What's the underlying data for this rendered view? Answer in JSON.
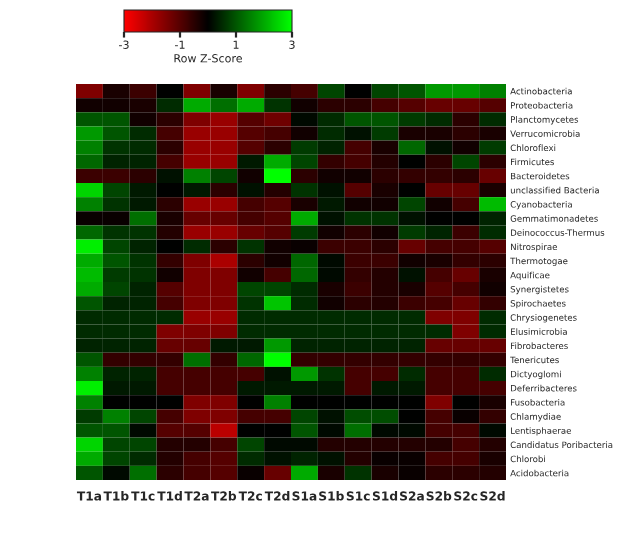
{
  "chart_data": {
    "type": "heatmap",
    "clabel": "Row Z-Score",
    "clim": [
      -3,
      3
    ],
    "cticks": [
      {
        "value": -3,
        "label": "-3"
      },
      {
        "value": -1,
        "label": "-1"
      },
      1,
      3
    ],
    "categories": [
      "T1a",
      "T1b",
      "T1c",
      "T1d",
      "T2a",
      "T2b",
      "T2c",
      "T2d",
      "S1a",
      "S1b",
      "S1c",
      "S1d",
      "S2a",
      "S2b",
      "S2c",
      "S2d"
    ],
    "y_categories": [
      "Actinobacteria",
      "Proteobacteria",
      "Planctomycetes",
      "Verrucomicrobia",
      "Chloroflexi",
      "Firmicutes",
      "Bacteroidetes",
      "unclassified Bacteria",
      "Cyanobacteria",
      "Gemmatimonadetes",
      "Deinococcus-Thermus",
      "Nitrospirae",
      "Thermotogae",
      "Aquificae",
      "Synergistetes",
      "Spirochaetes",
      "Chrysiogenetes",
      "Elusimicrobia",
      "Fibrobacteres",
      "Tenericutes",
      "Dictyoglomi",
      "Deferribacteres",
      "Fusobacteria",
      "Chlamydiae",
      "Lentisphaerae",
      "Candidatus Poribacteria",
      "Chlorobi",
      "Acidobacteria"
    ],
    "cells": [
      [
        -1.5,
        -0.3,
        -0.7,
        0,
        -1.5,
        -0.3,
        -1.5,
        -0.5,
        -0.8,
        0.8,
        0,
        0.8,
        1,
        1.8,
        1.8,
        1.5
      ],
      [
        -0.2,
        -0.2,
        -0.3,
        0.5,
        2,
        1.3,
        2,
        0.6,
        -0.2,
        -0.5,
        -0.5,
        -0.8,
        -1,
        -1.2,
        -1.2,
        -1
      ],
      [
        1,
        1,
        -0.2,
        -0.5,
        -1.5,
        -1.8,
        -1,
        -1.3,
        0.1,
        0.5,
        1,
        1,
        0.7,
        0.5,
        -0.5,
        0.5
      ],
      [
        1.8,
        1,
        0.5,
        -0.8,
        -1.8,
        -1.8,
        -1,
        -0.8,
        -0.2,
        0.5,
        0.2,
        0.7,
        -0.3,
        -0.3,
        -0.5,
        -0.3
      ],
      [
        1.5,
        0.6,
        0.5,
        -0.5,
        -1.8,
        -1.8,
        -1,
        -0.5,
        0.7,
        0.4,
        -0.8,
        -0.3,
        1.2,
        0.2,
        -0.2,
        0.7
      ],
      [
        1.2,
        0.4,
        0.4,
        -0.8,
        -1.8,
        -1.8,
        0.3,
        2,
        0.8,
        -0.6,
        -0.8,
        -0.4,
        0,
        -0.5,
        0.8,
        -0.5
      ],
      [
        -0.7,
        -0.7,
        -0.5,
        0.2,
        1.5,
        0.8,
        -0.2,
        3,
        -0.5,
        -0.2,
        -0.2,
        -0.5,
        -0.6,
        -0.6,
        -0.5,
        -1.2
      ],
      [
        2.5,
        0.8,
        0.3,
        0,
        0.3,
        -0.5,
        0.2,
        -0.4,
        0.6,
        0.2,
        -1,
        -0.3,
        0,
        -1.2,
        -1.2,
        -0.3
      ],
      [
        1.5,
        0.6,
        0.3,
        -0.5,
        -1.8,
        -1.8,
        -0.8,
        -1,
        -0.3,
        0.3,
        -0.2,
        -0.2,
        0.8,
        -0.2,
        -0.8,
        2.2
      ],
      [
        -0.1,
        -0.1,
        1.3,
        -0.3,
        -1.2,
        -1.2,
        -0.8,
        -1,
        2,
        0.2,
        0.6,
        0.6,
        0.2,
        0,
        0,
        0.4
      ],
      [
        1.2,
        0.6,
        0.6,
        -0.4,
        -1.8,
        -1.8,
        -1.2,
        -1,
        0.7,
        -0.2,
        -0.5,
        -0.2,
        0.7,
        0.4,
        -0.7,
        0.5
      ],
      [
        2.8,
        0.8,
        0.4,
        0,
        0.5,
        -0.5,
        0.6,
        -0.2,
        -0.1,
        -0.7,
        -0.7,
        -0.5,
        -1.2,
        -0.8,
        -0.8,
        -1
      ],
      [
        2,
        1,
        0.6,
        -0.6,
        -1.5,
        -2,
        -0.5,
        -0.2,
        1.2,
        0.1,
        -0.7,
        -0.7,
        -0.2,
        -0.3,
        -0.6,
        -0.5
      ],
      [
        2.2,
        0.7,
        0.6,
        -0.2,
        -1.5,
        -1.5,
        -0.2,
        -0.8,
        1.2,
        0.1,
        -0.6,
        -0.4,
        0.2,
        -0.8,
        -1.2,
        -0.3
      ],
      [
        2,
        0.8,
        0.4,
        -1,
        -1.5,
        -1.5,
        0.8,
        0.8,
        0.5,
        -0.3,
        -0.7,
        -0.4,
        -0.3,
        -1,
        -0.8,
        -0.2
      ],
      [
        1,
        0.4,
        0.4,
        -0.8,
        -1.5,
        -1.5,
        0.6,
        2.3,
        0.5,
        -0.2,
        -0.5,
        -0.4,
        -0.7,
        -0.8,
        -1.2,
        -0.6
      ],
      [
        0.5,
        0.5,
        0.5,
        0.5,
        -1.8,
        -1.8,
        0.5,
        0.5,
        0.5,
        0.5,
        0.5,
        0.5,
        0.5,
        -1.5,
        -1.5,
        0.5
      ],
      [
        0.5,
        0.5,
        0.5,
        -1.5,
        -1.5,
        -1.5,
        0.5,
        0.5,
        0.5,
        0.5,
        0.5,
        0.5,
        0.5,
        0.5,
        -1.5,
        0.5
      ],
      [
        0.4,
        0.4,
        0.4,
        -1.2,
        -1.2,
        0.3,
        0.3,
        1.8,
        0.4,
        0.4,
        0.4,
        0.4,
        0.4,
        -1.2,
        -1.2,
        -1.2
      ],
      [
        1,
        -0.6,
        -0.6,
        -0.6,
        1.3,
        -0.6,
        1.2,
        3,
        -0.6,
        -0.6,
        -0.6,
        -0.6,
        -0.6,
        -0.6,
        -0.6,
        -0.6
      ],
      [
        1.5,
        0.4,
        0.4,
        -0.8,
        -0.8,
        -0.8,
        -0.8,
        0.2,
        1.8,
        0.6,
        -0.8,
        -0.8,
        0.5,
        -0.8,
        -0.8,
        0.5
      ],
      [
        2.8,
        0.3,
        0.3,
        -0.8,
        -0.8,
        -0.8,
        0.3,
        0.3,
        0.3,
        0.3,
        -0.8,
        0.3,
        0.3,
        -0.8,
        -0.8,
        -0.8
      ],
      [
        1.5,
        0,
        0,
        0,
        -1.5,
        -1.5,
        0,
        1.5,
        0,
        0,
        0,
        0,
        0,
        -1.5,
        0,
        -0.3
      ],
      [
        0.7,
        1.5,
        0.8,
        -0.8,
        -1.5,
        -1.5,
        -0.8,
        -0.8,
        0.8,
        0.2,
        0.9,
        0.9,
        0,
        -0.8,
        -0.1,
        -0.6
      ],
      [
        1,
        1,
        0.1,
        -1,
        -1,
        -2.2,
        0,
        0,
        1,
        0.1,
        1.3,
        0.1,
        0.1,
        -0.8,
        -0.8,
        0.1
      ],
      [
        2.5,
        0.8,
        0.8,
        -0.4,
        -0.4,
        -0.8,
        0.8,
        0.1,
        0.1,
        -0.4,
        -0.4,
        -0.4,
        -0.4,
        -0.4,
        -0.8,
        -0.4
      ],
      [
        2,
        0.8,
        0.5,
        -0.4,
        -0.8,
        -1,
        0.5,
        0.2,
        0.4,
        0.2,
        -0.4,
        -0.1,
        -0.1,
        -0.8,
        -0.8,
        -0.3
      ],
      [
        1,
        0.1,
        1.3,
        -0.5,
        -0.8,
        -1,
        -0.1,
        -1.2,
        2,
        -0.3,
        0.6,
        -0.3,
        -0.1,
        -0.5,
        -0.5,
        -0.4
      ]
    ]
  }
}
